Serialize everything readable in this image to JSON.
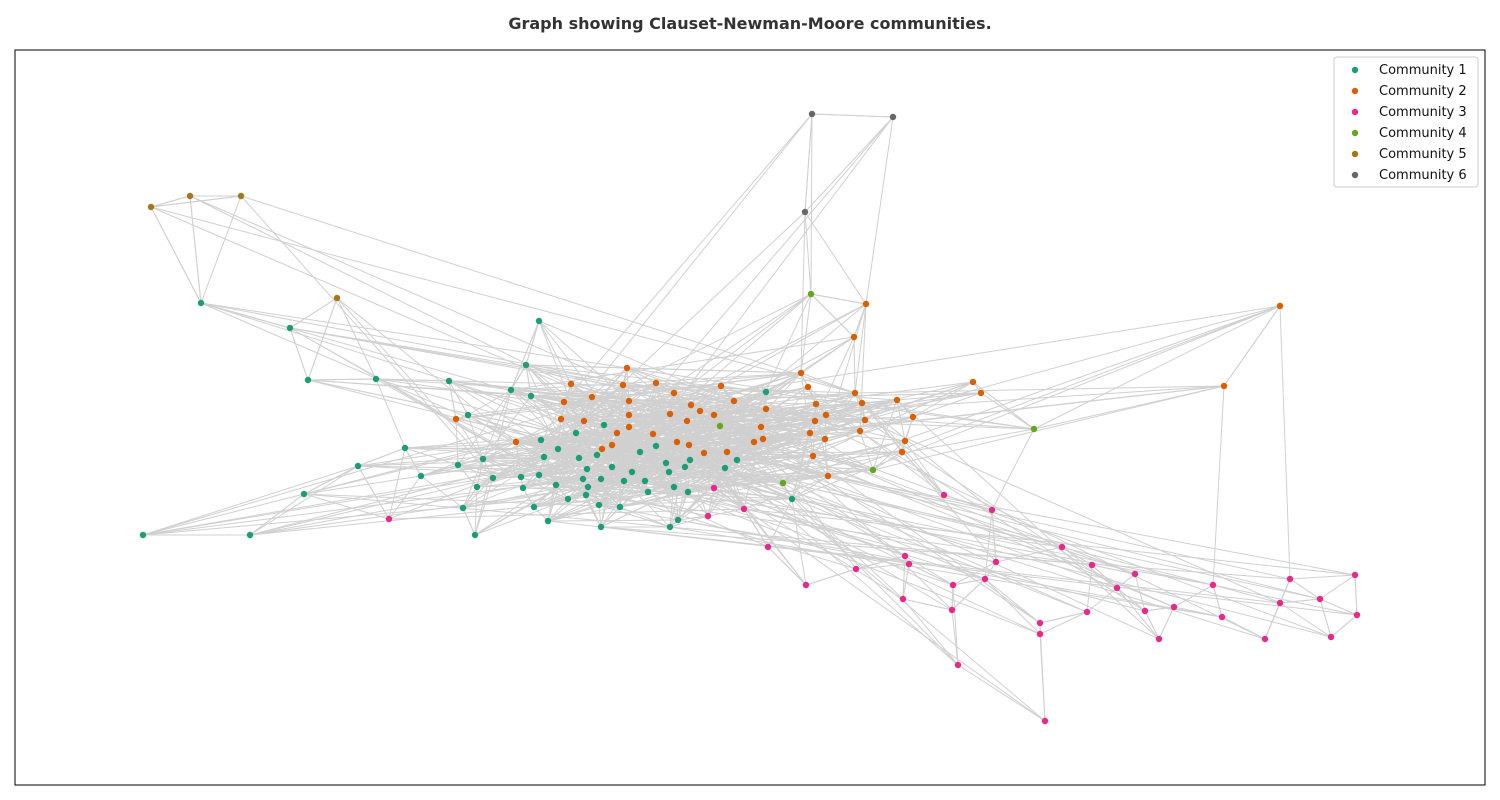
{
  "chart_data": {
    "type": "scatter",
    "title": "Graph showing Clauset-Newman-Moore communities.",
    "xlabel": "",
    "ylabel": "",
    "axes_ticks": false,
    "legend_position": "top-right",
    "edge_color": "#d0d0d0",
    "series": [
      {
        "name": "Community 1",
        "color": "#1b9e77",
        "points": [
          [
            143,
            535
          ],
          [
            250,
            535
          ],
          [
            201,
            303
          ],
          [
            290,
            328
          ],
          [
            304,
            494
          ],
          [
            308,
            380
          ],
          [
            358,
            466
          ],
          [
            376,
            379
          ],
          [
            405,
            448
          ],
          [
            421,
            476
          ],
          [
            449,
            381
          ],
          [
            458,
            465
          ],
          [
            463,
            508
          ],
          [
            468,
            415
          ],
          [
            475,
            535
          ],
          [
            477,
            487
          ],
          [
            483,
            459
          ],
          [
            493,
            478
          ],
          [
            511,
            390
          ],
          [
            521,
            477
          ],
          [
            523,
            488
          ],
          [
            526,
            365
          ],
          [
            531,
            396
          ],
          [
            534,
            507
          ],
          [
            539,
            321
          ],
          [
            539,
            475
          ],
          [
            541,
            440
          ],
          [
            544,
            457
          ],
          [
            548,
            521
          ],
          [
            556,
            485
          ],
          [
            558,
            449
          ],
          [
            568,
            499
          ],
          [
            576,
            433
          ],
          [
            579,
            458
          ],
          [
            583,
            479
          ],
          [
            587,
            469
          ],
          [
            588,
            487
          ],
          [
            586,
            495
          ],
          [
            597,
            455
          ],
          [
            599,
            505
          ],
          [
            601,
            527
          ],
          [
            601,
            479
          ],
          [
            604,
            425
          ],
          [
            612,
            467
          ],
          [
            620,
            507
          ],
          [
            624,
            481
          ],
          [
            632,
            472
          ],
          [
            640,
            452
          ],
          [
            645,
            481
          ],
          [
            648,
            492
          ],
          [
            656,
            446
          ],
          [
            666,
            463
          ],
          [
            670,
            527
          ],
          [
            669,
            472
          ],
          [
            674,
            487
          ],
          [
            678,
            520
          ],
          [
            685,
            467
          ],
          [
            688,
            492
          ],
          [
            690,
            460
          ],
          [
            725,
            468
          ],
          [
            737,
            460
          ],
          [
            766,
            392
          ],
          [
            792,
            499
          ]
        ]
      },
      {
        "name": "Community 2",
        "color": "#d95f02",
        "points": [
          [
            456,
            419
          ],
          [
            516,
            442
          ],
          [
            561,
            419
          ],
          [
            564,
            402
          ],
          [
            571,
            384
          ],
          [
            584,
            421
          ],
          [
            592,
            397
          ],
          [
            602,
            449
          ],
          [
            612,
            445
          ],
          [
            617,
            433
          ],
          [
            623,
            385
          ],
          [
            627,
            368
          ],
          [
            629,
            401
          ],
          [
            629,
            415
          ],
          [
            629,
            427
          ],
          [
            653,
            434
          ],
          [
            656,
            383
          ],
          [
            670,
            414
          ],
          [
            674,
            393
          ],
          [
            677,
            442
          ],
          [
            687,
            421
          ],
          [
            689,
            445
          ],
          [
            691,
            405
          ],
          [
            700,
            411
          ],
          [
            704,
            453
          ],
          [
            714,
            415
          ],
          [
            721,
            386
          ],
          [
            727,
            452
          ],
          [
            734,
            401
          ],
          [
            754,
            442
          ],
          [
            761,
            427
          ],
          [
            763,
            439
          ],
          [
            766,
            409
          ],
          [
            801,
            373
          ],
          [
            808,
            387
          ],
          [
            810,
            433
          ],
          [
            813,
            456
          ],
          [
            815,
            421
          ],
          [
            816,
            404
          ],
          [
            825,
            439
          ],
          [
            826,
            415
          ],
          [
            828,
            476
          ],
          [
            854,
            337
          ],
          [
            855,
            393
          ],
          [
            860,
            431
          ],
          [
            862,
            403
          ],
          [
            866,
            304
          ],
          [
            865,
            420
          ],
          [
            897,
            400
          ],
          [
            902,
            452
          ],
          [
            905,
            441
          ],
          [
            913,
            417
          ],
          [
            973,
            382
          ],
          [
            981,
            393
          ],
          [
            1224,
            386
          ],
          [
            1280,
            306
          ]
        ]
      },
      {
        "name": "Community 3",
        "color": "#e7298a",
        "points": [
          [
            389,
            519
          ],
          [
            708,
            516
          ],
          [
            714,
            488
          ],
          [
            744,
            509
          ],
          [
            768,
            547
          ],
          [
            806,
            585
          ],
          [
            856,
            569
          ],
          [
            903,
            599
          ],
          [
            905,
            556
          ],
          [
            909,
            564
          ],
          [
            944,
            495
          ],
          [
            952,
            610
          ],
          [
            953,
            585
          ],
          [
            958,
            665
          ],
          [
            985,
            579
          ],
          [
            992,
            510
          ],
          [
            996,
            562
          ],
          [
            1040,
            623
          ],
          [
            1040,
            634
          ],
          [
            1045,
            721
          ],
          [
            1062,
            547
          ],
          [
            1087,
            612
          ],
          [
            1092,
            565
          ],
          [
            1117,
            588
          ],
          [
            1135,
            574
          ],
          [
            1145,
            611
          ],
          [
            1159,
            639
          ],
          [
            1174,
            607
          ],
          [
            1213,
            585
          ],
          [
            1222,
            617
          ],
          [
            1265,
            639
          ],
          [
            1280,
            603
          ],
          [
            1290,
            579
          ],
          [
            1320,
            599
          ],
          [
            1331,
            637
          ],
          [
            1355,
            575
          ],
          [
            1357,
            615
          ]
        ]
      },
      {
        "name": "Community 4",
        "color": "#66a61e",
        "points": [
          [
            720,
            426
          ],
          [
            783,
            483
          ],
          [
            811,
            294
          ],
          [
            873,
            470
          ],
          [
            1034,
            429
          ]
        ]
      },
      {
        "name": "Community 5",
        "color": "#a6761d",
        "points": [
          [
            151,
            207
          ],
          [
            190,
            196
          ],
          [
            241,
            196
          ],
          [
            337,
            298
          ]
        ]
      },
      {
        "name": "Community 6",
        "color": "#666666",
        "points": [
          [
            812,
            114
          ],
          [
            893,
            117
          ],
          [
            805,
            212
          ]
        ]
      }
    ]
  }
}
